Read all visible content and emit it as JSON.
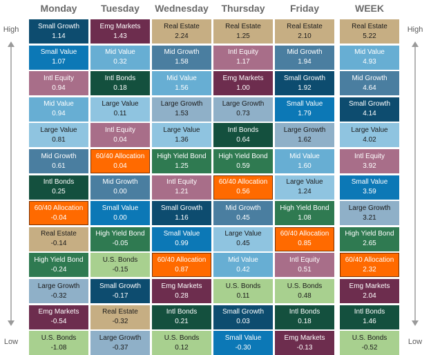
{
  "chart_data": {
    "type": "table",
    "columns": [
      "Monday",
      "Tuesday",
      "Wednesday",
      "Thursday",
      "Friday",
      "WEEK"
    ],
    "rank_labels": {
      "high": "High",
      "low": "Low"
    },
    "highlight": "60/40 Allocation",
    "asset_colors": {
      "Real Estate": "#c6ae83",
      "Small Value": "#0c78b6",
      "Intl Equity": "#a86e89",
      "Mid Growth": "#4a7ea0",
      "Small Growth": "#0d4c6f",
      "Mid Value": "#67aed3",
      "Emg Markets": "#6d2d4e",
      "Intl Bonds": "#14503e",
      "Large Value": "#8fc4e0",
      "Large Growth": "#8fb0c8",
      "High Yield Bond": "#2f7a51",
      "60/40 Allocation": "#ff6a00",
      "U.S. Bonds": "#a8d08f"
    },
    "text_dark": [
      "Real Estate",
      "Large Value",
      "Large Growth",
      "U.S. Bonds"
    ],
    "data": [
      [
        {
          "name": "Small Growth",
          "value": "1.14"
        },
        {
          "name": "Small Value",
          "value": "1.07"
        },
        {
          "name": "Intl Equity",
          "value": "0.94"
        },
        {
          "name": "Mid Value",
          "value": "0.94"
        },
        {
          "name": "Large Value",
          "value": "0.81"
        },
        {
          "name": "Mid Growth",
          "value": "0.61"
        },
        {
          "name": "Intl Bonds",
          "value": "0.25"
        },
        {
          "name": "60/40 Allocation",
          "value": "-0.04"
        },
        {
          "name": "Real Estate",
          "value": "-0.14"
        },
        {
          "name": "High Yield Bond",
          "value": "-0.24"
        },
        {
          "name": "Large Growth",
          "value": "-0.32"
        },
        {
          "name": "Emg Markets",
          "value": "-0.54"
        },
        {
          "name": "U.S. Bonds",
          "value": "-1.08"
        }
      ],
      [
        {
          "name": "Emg Markets",
          "value": "1.43"
        },
        {
          "name": "Mid Value",
          "value": "0.32"
        },
        {
          "name": "Intl Bonds",
          "value": "0.18"
        },
        {
          "name": "Large Value",
          "value": "0.11"
        },
        {
          "name": "Intl Equity",
          "value": "0.04"
        },
        {
          "name": "60/40 Allocation",
          "value": "0.04"
        },
        {
          "name": "Mid Growth",
          "value": "0.00"
        },
        {
          "name": "Small Value",
          "value": "0.00"
        },
        {
          "name": "High Yield Bond",
          "value": "-0.05"
        },
        {
          "name": "U.S. Bonds",
          "value": "-0.15"
        },
        {
          "name": "Small Growth",
          "value": "-0.17"
        },
        {
          "name": "Real Estate",
          "value": "-0.32"
        },
        {
          "name": "Large Growth",
          "value": "-0.37"
        }
      ],
      [
        {
          "name": "Real Estate",
          "value": "2.24"
        },
        {
          "name": "Mid Growth",
          "value": "1.58"
        },
        {
          "name": "Mid Value",
          "value": "1.56"
        },
        {
          "name": "Large Growth",
          "value": "1.53"
        },
        {
          "name": "Large Value",
          "value": "1.36"
        },
        {
          "name": "High Yield Bond",
          "value": "1.25"
        },
        {
          "name": "Intl Equity",
          "value": "1.21"
        },
        {
          "name": "Small Growth",
          "value": "1.16"
        },
        {
          "name": "Small Value",
          "value": "0.99"
        },
        {
          "name": "60/40 Allocation",
          "value": "0.87"
        },
        {
          "name": "Emg Markets",
          "value": "0.28"
        },
        {
          "name": "Intl Bonds",
          "value": "0.21"
        },
        {
          "name": "U.S. Bonds",
          "value": "0.12"
        }
      ],
      [
        {
          "name": "Real Estate",
          "value": "1.25"
        },
        {
          "name": "Intl Equity",
          "value": "1.17"
        },
        {
          "name": "Emg Markets",
          "value": "1.00"
        },
        {
          "name": "Large Growth",
          "value": "0.73"
        },
        {
          "name": "Intl Bonds",
          "value": "0.64"
        },
        {
          "name": "High Yield Bond",
          "value": "0.59"
        },
        {
          "name": "60/40 Allocation",
          "value": "0.56"
        },
        {
          "name": "Mid Growth",
          "value": "0.45"
        },
        {
          "name": "Large Value",
          "value": "0.45"
        },
        {
          "name": "Mid Value",
          "value": "0.42"
        },
        {
          "name": "U.S. Bonds",
          "value": "0.11"
        },
        {
          "name": "Small Growth",
          "value": "0.03"
        },
        {
          "name": "Small Value",
          "value": "-0.30"
        }
      ],
      [
        {
          "name": "Real Estate",
          "value": "2.10"
        },
        {
          "name": "Mid Growth",
          "value": "1.94"
        },
        {
          "name": "Small Growth",
          "value": "1.92"
        },
        {
          "name": "Small Value",
          "value": "1.79"
        },
        {
          "name": "Large Growth",
          "value": "1.62"
        },
        {
          "name": "Mid Value",
          "value": "1.60"
        },
        {
          "name": "Large Value",
          "value": "1.24"
        },
        {
          "name": "High Yield Bond",
          "value": "1.08"
        },
        {
          "name": "60/40 Allocation",
          "value": "0.85"
        },
        {
          "name": "Intl Equity",
          "value": "0.51"
        },
        {
          "name": "U.S. Bonds",
          "value": "0.48"
        },
        {
          "name": "Intl Bonds",
          "value": "0.18"
        },
        {
          "name": "Emg Markets",
          "value": "-0.13"
        }
      ],
      [
        {
          "name": "Real Estate",
          "value": "5.22"
        },
        {
          "name": "Mid Value",
          "value": "4.93"
        },
        {
          "name": "Mid Growth",
          "value": "4.64"
        },
        {
          "name": "Small Growth",
          "value": "4.14"
        },
        {
          "name": "Large Value",
          "value": "4.02"
        },
        {
          "name": "Intl Equity",
          "value": "3.92"
        },
        {
          "name": "Small Value",
          "value": "3.59"
        },
        {
          "name": "Large Growth",
          "value": "3.21"
        },
        {
          "name": "High Yield Bond",
          "value": "2.65"
        },
        {
          "name": "60/40 Allocation",
          "value": "2.32"
        },
        {
          "name": "Emg Markets",
          "value": "2.04"
        },
        {
          "name": "Intl Bonds",
          "value": "1.46"
        },
        {
          "name": "U.S. Bonds",
          "value": "-0.52"
        }
      ]
    ]
  }
}
